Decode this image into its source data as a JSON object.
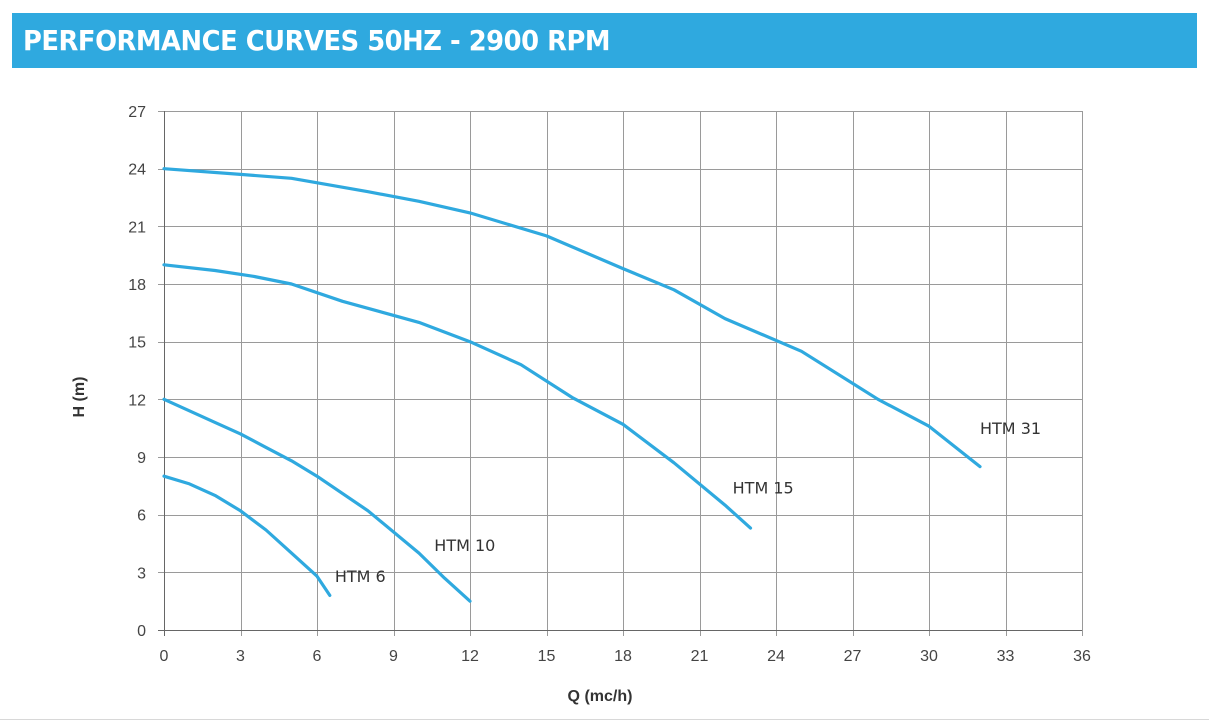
{
  "header": {
    "title": "PERFORMANCE CURVES 50HZ - 2900 RPM",
    "background_color": "#2fa9df",
    "text_color": "#ffffff"
  },
  "chart_data": {
    "type": "line",
    "xlabel": "Q (mc/h)",
    "ylabel": "H (m)",
    "xlim": [
      0,
      36
    ],
    "ylim": [
      0,
      27
    ],
    "xticks": [
      0,
      3,
      6,
      9,
      12,
      15,
      18,
      21,
      24,
      27,
      30,
      33,
      36
    ],
    "yticks": [
      0,
      3,
      6,
      9,
      12,
      15,
      18,
      21,
      24,
      27
    ],
    "grid": true,
    "line_color": "#2fa9df",
    "series": [
      {
        "name": "HTM 6",
        "x": [
          0,
          1,
          2,
          3,
          4,
          5,
          6,
          6.5
        ],
        "y": [
          8.0,
          7.6,
          7.0,
          6.2,
          5.2,
          4.0,
          2.8,
          1.8
        ]
      },
      {
        "name": "HTM 10",
        "x": [
          0,
          2,
          3,
          4,
          5,
          6,
          8,
          10,
          11,
          12
        ],
        "y": [
          12.0,
          10.8,
          10.2,
          9.5,
          8.8,
          8.0,
          6.2,
          4.0,
          2.7,
          1.5
        ]
      },
      {
        "name": "HTM 15",
        "x": [
          0,
          2,
          3.5,
          5,
          7,
          10,
          12,
          14,
          16,
          18,
          20,
          22,
          23
        ],
        "y": [
          19.0,
          18.7,
          18.4,
          18.0,
          17.1,
          16.0,
          15.0,
          13.8,
          12.1,
          10.7,
          8.7,
          6.5,
          5.3
        ]
      },
      {
        "name": "HTM 31",
        "x": [
          0,
          3,
          5,
          8,
          10,
          12,
          15,
          18,
          20,
          22,
          25,
          28,
          30,
          32
        ],
        "y": [
          24.0,
          23.7,
          23.5,
          22.8,
          22.3,
          21.7,
          20.5,
          18.8,
          17.7,
          16.2,
          14.5,
          12.0,
          10.6,
          8.5
        ]
      }
    ],
    "annotations": [
      {
        "text": "HTM 6",
        "x": 6.7,
        "y": 2.5
      },
      {
        "text": "HTM 10",
        "x": 10.6,
        "y": 4.1
      },
      {
        "text": "HTM 15",
        "x": 22.3,
        "y": 7.1
      },
      {
        "text": "HTM 31",
        "x": 32.0,
        "y": 10.2
      }
    ]
  }
}
